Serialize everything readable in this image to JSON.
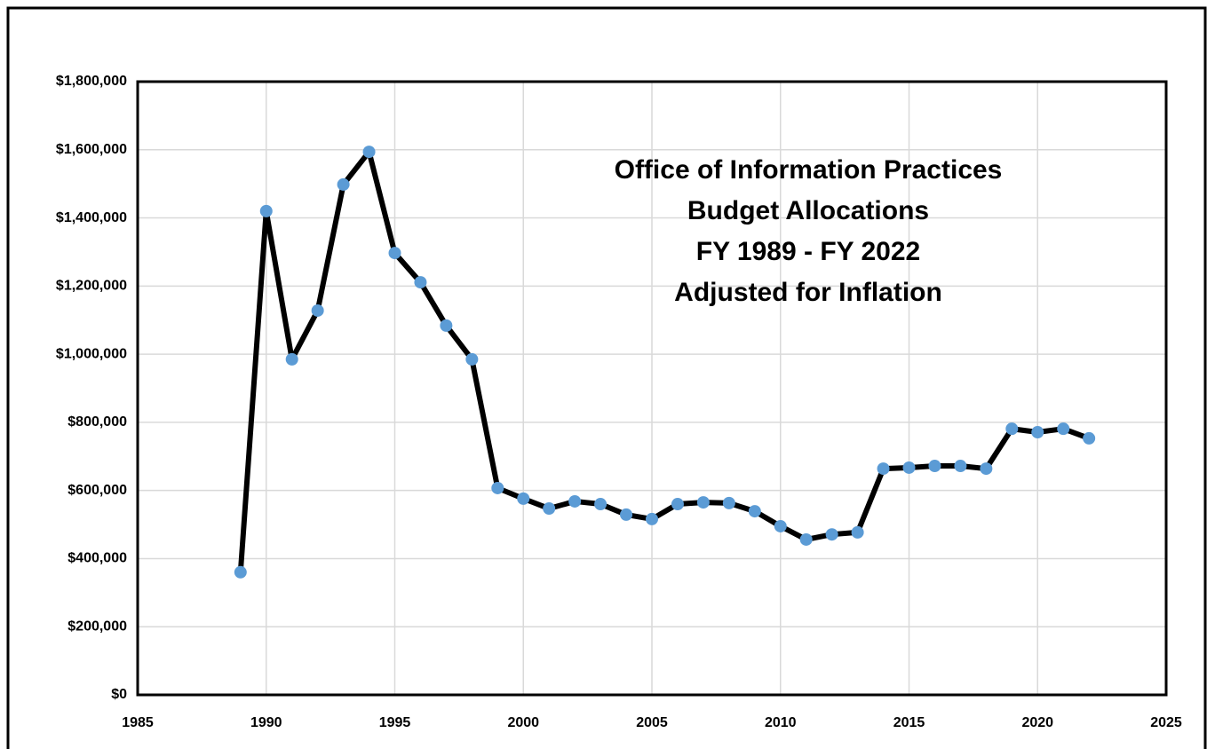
{
  "chart_data": {
    "type": "line",
    "title": [
      "Office of Information Practices",
      "Budget Allocations",
      "FY 1989 - FY 2022",
      "Adjusted for Inflation"
    ],
    "x": [
      1989,
      1990,
      1991,
      1992,
      1993,
      1994,
      1995,
      1996,
      1997,
      1998,
      1999,
      2000,
      2001,
      2002,
      2003,
      2004,
      2005,
      2006,
      2007,
      2008,
      2009,
      2010,
      2011,
      2012,
      2013,
      2014,
      2015,
      2016,
      2017,
      2018,
      2019,
      2020,
      2021,
      2022
    ],
    "values": [
      360000,
      1420000,
      985000,
      1128000,
      1498000,
      1594000,
      1297000,
      1211000,
      1084000,
      985000,
      607000,
      576000,
      547000,
      568000,
      560000,
      529000,
      516000,
      560000,
      565000,
      563000,
      539000,
      495000,
      456000,
      471000,
      477000,
      664000,
      667000,
      672000,
      672000,
      664000,
      781000,
      771000,
      781000,
      753000
    ],
    "line_color": "#000000",
    "marker_color": "#5b9bd5",
    "xlim": [
      1985,
      2025
    ],
    "xticks": [
      1985,
      1990,
      1995,
      2000,
      2005,
      2010,
      2015,
      2020,
      2025
    ],
    "ylim": [
      0,
      1800000
    ],
    "yticks": [
      {
        "value": 0,
        "label": "$0"
      },
      {
        "value": 200000,
        "label": "$200,000"
      },
      {
        "value": 400000,
        "label": "$400,000"
      },
      {
        "value": 600000,
        "label": "$600,000"
      },
      {
        "value": 800000,
        "label": "$800,000"
      },
      {
        "value": 1000000,
        "label": "$1,000,000"
      },
      {
        "value": 1200000,
        "label": "$1,200,000"
      },
      {
        "value": 1400000,
        "label": "$1,400,000"
      },
      {
        "value": 1600000,
        "label": "$1,600,000"
      },
      {
        "value": 1800000,
        "label": "$1,800,000"
      }
    ],
    "grid": true
  }
}
